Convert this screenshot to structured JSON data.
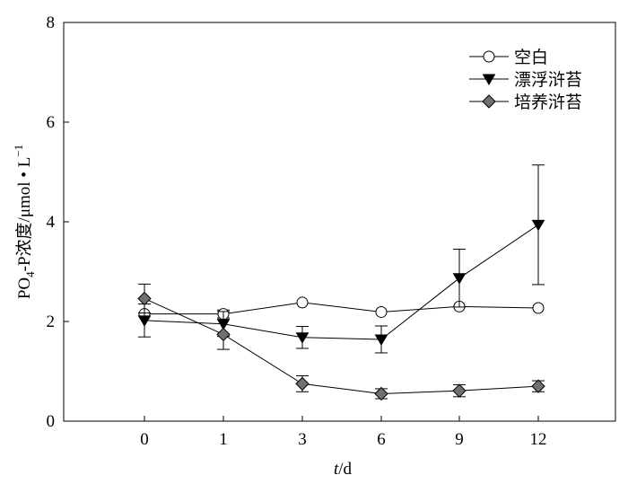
{
  "chart_data": {
    "type": "line",
    "categories": [
      "0",
      "1",
      "3",
      "6",
      "9",
      "12"
    ],
    "ylim": [
      0,
      8
    ],
    "yticks": [
      "0",
      "2",
      "4",
      "6",
      "8"
    ],
    "xlabel": {
      "italic": "t",
      "rest": "/d"
    },
    "ylabel": {
      "main": "PO",
      "sub": "4",
      "mid": "-P浓度/μmol • L",
      "sup": "−1"
    },
    "legend_position": "top-right",
    "grid": false,
    "series": [
      {
        "name": "空白",
        "marker": "circle",
        "fill": "#ffffff",
        "values": [
          2.15,
          2.15,
          2.38,
          2.19,
          2.3,
          2.27
        ],
        "errors": [
          0.0,
          0.08,
          0.0,
          0.0,
          0.0,
          0.0
        ]
      },
      {
        "name": "漂浮浒苔",
        "marker": "triangle-down",
        "fill": "#000000",
        "values": [
          2.02,
          1.95,
          1.68,
          1.64,
          2.87,
          3.94
        ],
        "errors": [
          0.33,
          0.25,
          0.22,
          0.27,
          0.58,
          1.2
        ]
      },
      {
        "name": "培养浒苔",
        "marker": "diamond",
        "fill": "#707070",
        "values": [
          2.46,
          1.74,
          0.75,
          0.55,
          0.61,
          0.7
        ],
        "errors": [
          0.29,
          0.3,
          0.16,
          0.1,
          0.12,
          0.11
        ]
      }
    ]
  }
}
